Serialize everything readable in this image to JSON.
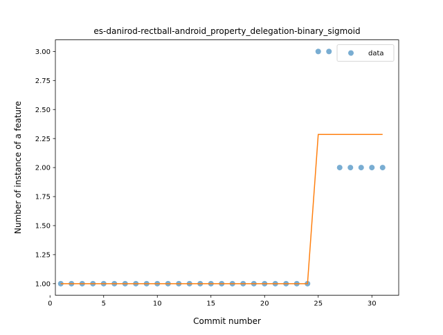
{
  "chart_data": {
    "type": "scatter",
    "title": "es-danirod-rectball-android_property_delegation-binary_sigmoid",
    "xlabel": "Commit number",
    "ylabel": "Number of instance of a feature",
    "xlim": [
      0.5,
      32.5
    ],
    "ylim": [
      0.9,
      3.1
    ],
    "x_ticks": [
      0,
      5,
      10,
      15,
      20,
      25,
      30
    ],
    "x_tick_labels": [
      "0",
      "5",
      "10",
      "15",
      "20",
      "25",
      "30"
    ],
    "y_ticks": [
      1.0,
      1.25,
      1.5,
      1.75,
      2.0,
      2.25,
      2.5,
      2.75,
      3.0
    ],
    "y_tick_labels": [
      "1.00",
      "1.25",
      "1.50",
      "1.75",
      "2.00",
      "2.25",
      "2.50",
      "2.75",
      "3.00"
    ],
    "grid": false,
    "legend": {
      "position": "top-right",
      "entries": [
        "data"
      ]
    },
    "series": [
      {
        "name": "data",
        "kind": "scatter",
        "color": "#1f77b4",
        "x": [
          1,
          2,
          3,
          4,
          5,
          6,
          7,
          8,
          9,
          10,
          11,
          12,
          13,
          14,
          15,
          16,
          17,
          18,
          19,
          20,
          21,
          22,
          23,
          24,
          25,
          26,
          27,
          28,
          29,
          30,
          31
        ],
        "y": [
          1,
          1,
          1,
          1,
          1,
          1,
          1,
          1,
          1,
          1,
          1,
          1,
          1,
          1,
          1,
          1,
          1,
          1,
          1,
          1,
          1,
          1,
          1,
          1,
          3,
          3,
          2,
          2,
          2,
          2,
          2
        ]
      },
      {
        "kind": "line",
        "color": "#ff7f0e",
        "x": [
          1,
          2,
          3,
          4,
          5,
          6,
          7,
          8,
          9,
          10,
          11,
          12,
          13,
          14,
          15,
          16,
          17,
          18,
          19,
          20,
          21,
          22,
          23,
          24,
          25,
          26,
          27,
          28,
          29,
          30,
          31
        ],
        "y": [
          1,
          1,
          1,
          1,
          1,
          1,
          1,
          1,
          1,
          1,
          1,
          1,
          1,
          1,
          1,
          1,
          1,
          1,
          1,
          1,
          1,
          1,
          1,
          1,
          2.285,
          2.285,
          2.285,
          2.285,
          2.285,
          2.285,
          2.285
        ]
      }
    ]
  }
}
